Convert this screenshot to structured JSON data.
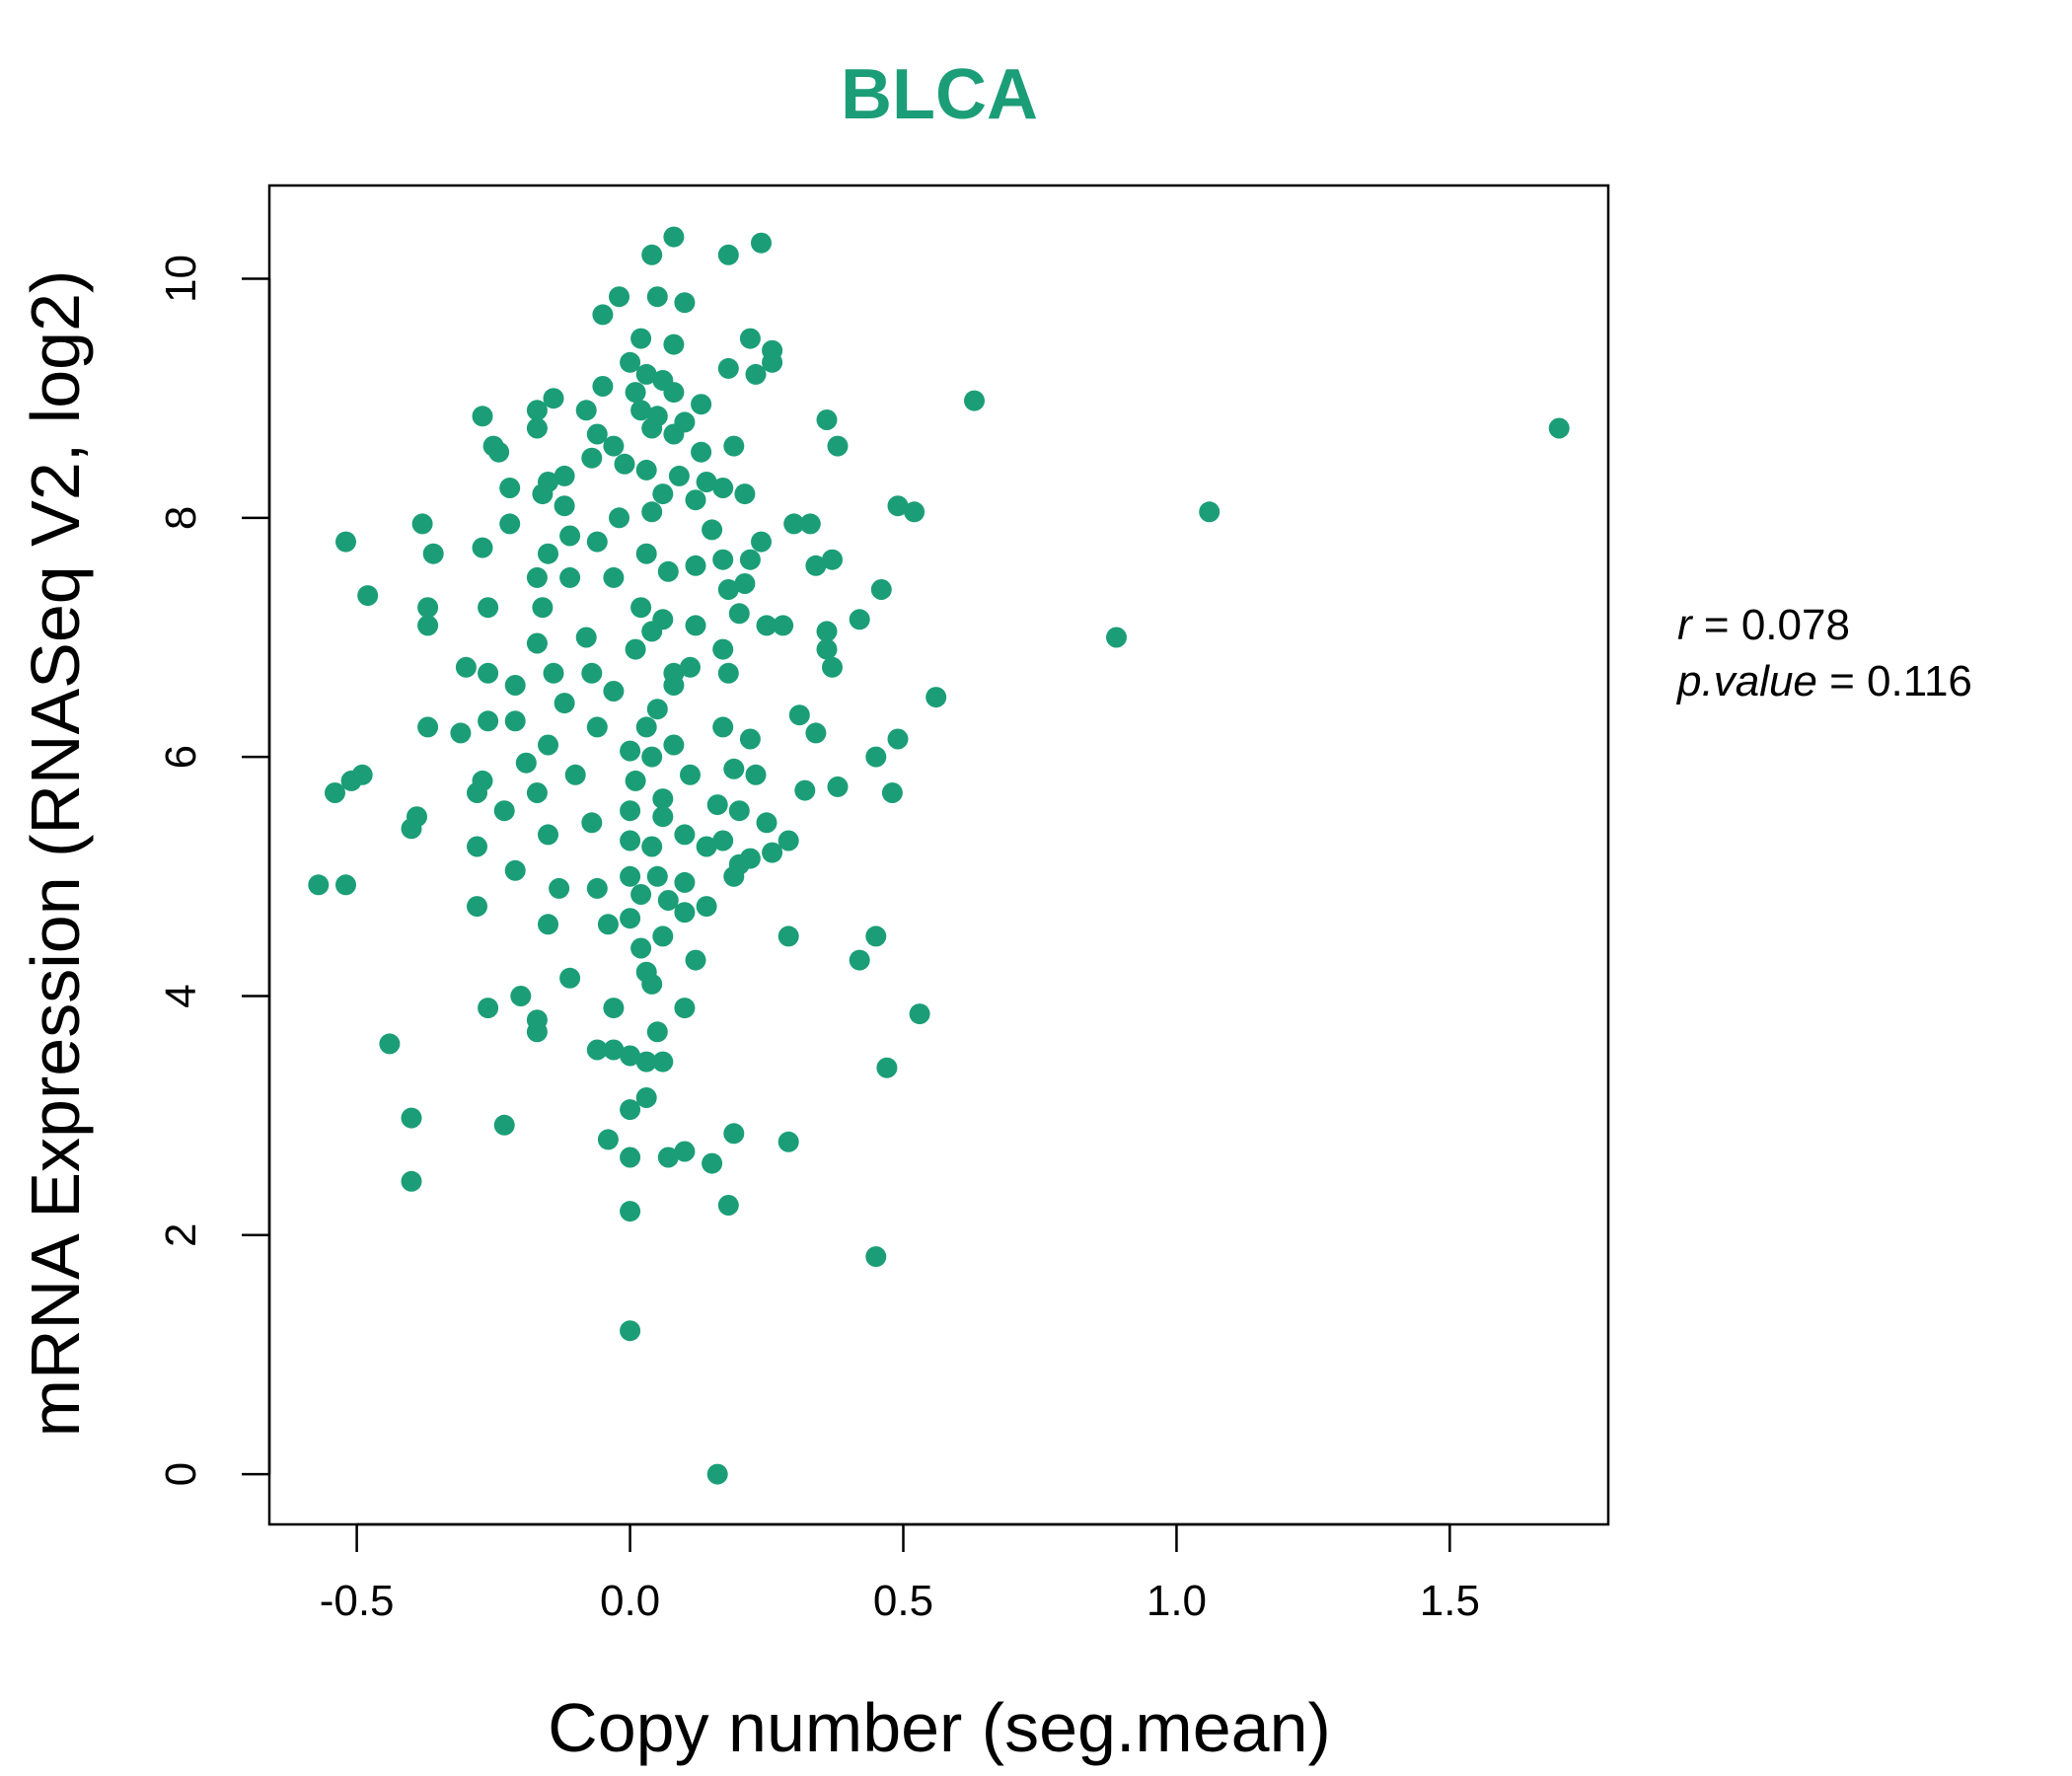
{
  "colors": {
    "point": "#1b9e77",
    "title": "#1b9e77",
    "axis": "#000000",
    "background": "#ffffff"
  },
  "chart_data": {
    "type": "scatter",
    "title": "BLCA",
    "xlabel": "Copy number (seg.mean)",
    "ylabel": "mRNA Expression (RNASeq V2, log2)",
    "xlim": [
      -0.66,
      1.79
    ],
    "ylim": [
      -0.42,
      10.78
    ],
    "x_ticks": [
      -0.5,
      0.0,
      0.5,
      1.0,
      1.5
    ],
    "x_tick_labels": [
      "-0.5",
      "0.0",
      "0.5",
      "1.0",
      "1.5"
    ],
    "y_ticks": [
      0,
      2,
      4,
      6,
      8,
      10
    ],
    "y_tick_labels": [
      "0",
      "2",
      "4",
      "6",
      "8",
      "10"
    ],
    "grid": false,
    "legend": "none",
    "stats": {
      "r_label": "r",
      "r_value": "0.078",
      "p_label": "p.value",
      "p_value": "0.116"
    },
    "points": [
      [
        0.08,
        10.35
      ],
      [
        0.04,
        10.2
      ],
      [
        0.18,
        10.2
      ],
      [
        0.24,
        10.3
      ],
      [
        -0.02,
        9.85
      ],
      [
        0.05,
        9.85
      ],
      [
        0.1,
        9.8
      ],
      [
        -0.05,
        9.7
      ],
      [
        0.02,
        9.5
      ],
      [
        0.08,
        9.45
      ],
      [
        0.22,
        9.5
      ],
      [
        0.26,
        9.4
      ],
      [
        0.26,
        9.3
      ],
      [
        0.0,
        9.3
      ],
      [
        0.03,
        9.2
      ],
      [
        0.06,
        9.15
      ],
      [
        0.18,
        9.25
      ],
      [
        0.23,
        9.2
      ],
      [
        -0.05,
        9.1
      ],
      [
        0.01,
        9.05
      ],
      [
        0.08,
        9.05
      ],
      [
        0.13,
        8.95
      ],
      [
        -0.14,
        9.0
      ],
      [
        -0.17,
        8.9
      ],
      [
        -0.08,
        8.9
      ],
      [
        0.02,
        8.9
      ],
      [
        0.05,
        8.85
      ],
      [
        0.1,
        8.8
      ],
      [
        -0.27,
        8.85
      ],
      [
        -0.17,
        8.75
      ],
      [
        0.04,
        8.75
      ],
      [
        0.08,
        8.7
      ],
      [
        -0.06,
        8.7
      ],
      [
        -0.03,
        8.6
      ],
      [
        0.63,
        8.98
      ],
      [
        0.36,
        8.82
      ],
      [
        1.7,
        8.75
      ],
      [
        -0.25,
        8.6
      ],
      [
        -0.24,
        8.55
      ],
      [
        0.38,
        8.6
      ],
      [
        0.19,
        8.6
      ],
      [
        0.13,
        8.55
      ],
      [
        -0.07,
        8.5
      ],
      [
        -0.01,
        8.45
      ],
      [
        0.03,
        8.4
      ],
      [
        0.09,
        8.35
      ],
      [
        -0.12,
        8.35
      ],
      [
        -0.15,
        8.3
      ],
      [
        -0.22,
        8.25
      ],
      [
        0.14,
        8.3
      ],
      [
        0.17,
        8.25
      ],
      [
        0.21,
        8.2
      ],
      [
        -0.16,
        8.2
      ],
      [
        0.06,
        8.2
      ],
      [
        0.12,
        8.15
      ],
      [
        -0.12,
        8.1
      ],
      [
        0.04,
        8.05
      ],
      [
        0.49,
        8.1
      ],
      [
        0.52,
        8.05
      ],
      [
        1.06,
        8.05
      ],
      [
        -0.38,
        7.95
      ],
      [
        -0.22,
        7.95
      ],
      [
        -0.02,
        8.0
      ],
      [
        0.3,
        7.95
      ],
      [
        0.33,
        7.95
      ],
      [
        0.15,
        7.9
      ],
      [
        -0.11,
        7.85
      ],
      [
        -0.06,
        7.8
      ],
      [
        0.24,
        7.8
      ],
      [
        -0.52,
        7.8
      ],
      [
        -0.27,
        7.75
      ],
      [
        -0.36,
        7.7
      ],
      [
        -0.15,
        7.7
      ],
      [
        0.03,
        7.7
      ],
      [
        0.17,
        7.65
      ],
      [
        0.22,
        7.65
      ],
      [
        0.37,
        7.65
      ],
      [
        0.34,
        7.6
      ],
      [
        0.12,
        7.6
      ],
      [
        -0.17,
        7.5
      ],
      [
        -0.11,
        7.5
      ],
      [
        -0.03,
        7.5
      ],
      [
        0.07,
        7.55
      ],
      [
        0.21,
        7.45
      ],
      [
        0.18,
        7.4
      ],
      [
        0.46,
        7.4
      ],
      [
        -0.48,
        7.35
      ],
      [
        -0.37,
        7.25
      ],
      [
        -0.26,
        7.25
      ],
      [
        -0.16,
        7.25
      ],
      [
        0.02,
        7.25
      ],
      [
        0.2,
        7.2
      ],
      [
        0.42,
        7.15
      ],
      [
        0.06,
        7.15
      ],
      [
        0.12,
        7.1
      ],
      [
        0.25,
        7.1
      ],
      [
        0.28,
        7.1
      ],
      [
        -0.37,
        7.1
      ],
      [
        0.36,
        7.05
      ],
      [
        0.04,
        7.05
      ],
      [
        0.89,
        7.0
      ],
      [
        -0.08,
        7.0
      ],
      [
        -0.17,
        6.95
      ],
      [
        0.36,
        6.9
      ],
      [
        0.17,
        6.9
      ],
      [
        0.01,
        6.9
      ],
      [
        -0.3,
        6.75
      ],
      [
        -0.26,
        6.7
      ],
      [
        -0.14,
        6.7
      ],
      [
        -0.07,
        6.7
      ],
      [
        0.08,
        6.7
      ],
      [
        0.37,
        6.75
      ],
      [
        0.11,
        6.75
      ],
      [
        0.18,
        6.7
      ],
      [
        -0.21,
        6.6
      ],
      [
        -0.03,
        6.55
      ],
      [
        0.08,
        6.6
      ],
      [
        0.56,
        6.5
      ],
      [
        -0.12,
        6.45
      ],
      [
        0.05,
        6.4
      ],
      [
        0.31,
        6.35
      ],
      [
        -0.26,
        6.3
      ],
      [
        -0.21,
        6.3
      ],
      [
        -0.37,
        6.25
      ],
      [
        -0.06,
        6.25
      ],
      [
        0.03,
        6.25
      ],
      [
        0.17,
        6.25
      ],
      [
        -0.31,
        6.2
      ],
      [
        0.34,
        6.2
      ],
      [
        0.22,
        6.15
      ],
      [
        0.49,
        6.15
      ],
      [
        -0.15,
        6.1
      ],
      [
        0.08,
        6.1
      ],
      [
        0.0,
        6.05
      ],
      [
        0.04,
        6.0
      ],
      [
        0.45,
        6.0
      ],
      [
        -0.19,
        5.95
      ],
      [
        0.19,
        5.9
      ],
      [
        0.11,
        5.85
      ],
      [
        0.23,
        5.85
      ],
      [
        -0.49,
        5.85
      ],
      [
        -0.51,
        5.8
      ],
      [
        -0.27,
        5.8
      ],
      [
        -0.1,
        5.85
      ],
      [
        0.01,
        5.8
      ],
      [
        0.38,
        5.75
      ],
      [
        0.32,
        5.72
      ],
      [
        -0.54,
        5.7
      ],
      [
        -0.28,
        5.7
      ],
      [
        -0.17,
        5.7
      ],
      [
        0.06,
        5.65
      ],
      [
        0.48,
        5.7
      ],
      [
        0.16,
        5.6
      ],
      [
        -0.39,
        5.5
      ],
      [
        -0.23,
        5.55
      ],
      [
        0.0,
        5.55
      ],
      [
        0.06,
        5.5
      ],
      [
        0.2,
        5.55
      ],
      [
        0.25,
        5.45
      ],
      [
        -0.4,
        5.4
      ],
      [
        -0.15,
        5.35
      ],
      [
        0.1,
        5.35
      ],
      [
        0.29,
        5.3
      ],
      [
        -0.28,
        5.25
      ],
      [
        -0.07,
        5.45
      ],
      [
        0.0,
        5.3
      ],
      [
        0.04,
        5.25
      ],
      [
        0.14,
        5.25
      ],
      [
        0.17,
        5.3
      ],
      [
        0.26,
        5.2
      ],
      [
        0.22,
        5.15
      ],
      [
        0.2,
        5.1
      ],
      [
        -0.21,
        5.05
      ],
      [
        0.0,
        5.0
      ],
      [
        0.05,
        5.0
      ],
      [
        0.1,
        4.95
      ],
      [
        0.19,
        5.0
      ],
      [
        -0.57,
        4.93
      ],
      [
        -0.52,
        4.93
      ],
      [
        -0.13,
        4.9
      ],
      [
        -0.06,
        4.9
      ],
      [
        0.02,
        4.85
      ],
      [
        0.07,
        4.8
      ],
      [
        0.14,
        4.75
      ],
      [
        -0.28,
        4.75
      ],
      [
        0.1,
        4.7
      ],
      [
        0.0,
        4.65
      ],
      [
        -0.15,
        4.6
      ],
      [
        -0.04,
        4.6
      ],
      [
        0.06,
        4.5
      ],
      [
        0.29,
        4.5
      ],
      [
        0.45,
        4.5
      ],
      [
        0.02,
        4.4
      ],
      [
        0.42,
        4.3
      ],
      [
        0.12,
        4.3
      ],
      [
        0.03,
        4.2
      ],
      [
        -0.11,
        4.15
      ],
      [
        0.04,
        4.1
      ],
      [
        -0.2,
        4.0
      ],
      [
        -0.26,
        3.9
      ],
      [
        -0.03,
        3.9
      ],
      [
        0.1,
        3.9
      ],
      [
        0.53,
        3.85
      ],
      [
        -0.17,
        3.8
      ],
      [
        0.05,
        3.7
      ],
      [
        -0.17,
        3.7
      ],
      [
        -0.44,
        3.6
      ],
      [
        -0.06,
        3.55
      ],
      [
        -0.03,
        3.55
      ],
      [
        0.0,
        3.5
      ],
      [
        0.03,
        3.45
      ],
      [
        0.06,
        3.45
      ],
      [
        0.47,
        3.4
      ],
      [
        0.03,
        3.15
      ],
      [
        0.0,
        3.05
      ],
      [
        -0.4,
        2.98
      ],
      [
        -0.23,
        2.92
      ],
      [
        0.19,
        2.85
      ],
      [
        -0.04,
        2.8
      ],
      [
        0.29,
        2.78
      ],
      [
        0.1,
        2.7
      ],
      [
        0.07,
        2.65
      ],
      [
        0.0,
        2.65
      ],
      [
        0.15,
        2.6
      ],
      [
        -0.4,
        2.45
      ],
      [
        0.18,
        2.25
      ],
      [
        0.0,
        2.2
      ],
      [
        0.45,
        1.82
      ],
      [
        0.0,
        1.2
      ],
      [
        0.16,
        0.0
      ]
    ]
  }
}
